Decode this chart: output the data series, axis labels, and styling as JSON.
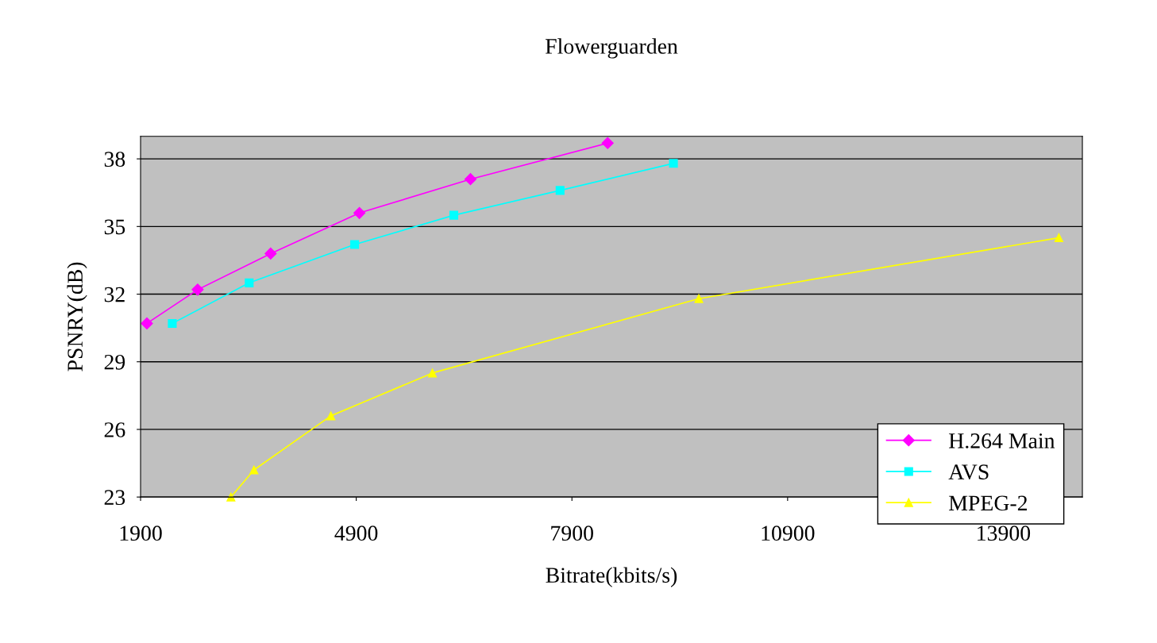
{
  "chart_data": {
    "type": "line",
    "title": "Flowerguarden",
    "xlabel": "Bitrate(kbits/s)",
    "ylabel": "PSNRY(dB)",
    "xlim": [
      1900,
      15000
    ],
    "xticks": [
      1900,
      4900,
      7900,
      10900,
      13900
    ],
    "ylim": [
      23,
      39
    ],
    "yticks": [
      23,
      26,
      29,
      32,
      35,
      38
    ],
    "grid": "y",
    "legend": "bottom right",
    "series": [
      {
        "name": "H.264 Main",
        "color": "#ff00ff",
        "marker": "diamond",
        "x": [
          1988,
          2694,
          3709,
          4944,
          6489,
          8397
        ],
        "values": [
          30.7,
          32.2,
          33.8,
          35.6,
          37.1,
          38.7
        ]
      },
      {
        "name": "AVS",
        "color": "#00ffff",
        "marker": "square",
        "x": [
          2341,
          3411,
          4878,
          6257,
          7735,
          9312
        ],
        "values": [
          30.7,
          32.5,
          34.2,
          35.5,
          36.6,
          37.8
        ]
      },
      {
        "name": "MPEG-2",
        "color": "#ffff00",
        "marker": "triangle",
        "x": [
          3157,
          3477,
          4547,
          5959,
          9665,
          14673
        ],
        "values": [
          23.0,
          24.2,
          26.6,
          28.5,
          31.8,
          34.5
        ]
      }
    ]
  }
}
